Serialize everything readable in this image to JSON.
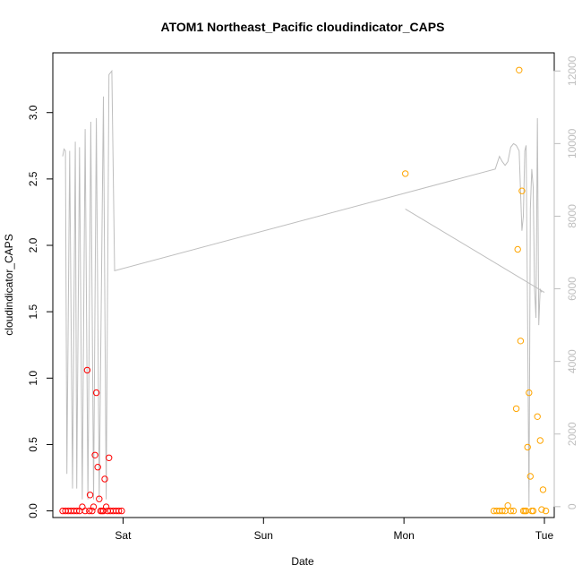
{
  "chart_data": {
    "type": "scatter",
    "title": "ATOM1 Northeast_Pacific cloudindicator_CAPS",
    "xlabel": "Date",
    "ylabel": "cloudindicator_CAPS",
    "x_ticks": [
      {
        "value": 1.0,
        "label": "Sat"
      },
      {
        "value": 2.0,
        "label": "Sun"
      },
      {
        "value": 3.0,
        "label": "Mon"
      },
      {
        "value": 4.0,
        "label": "Tue"
      }
    ],
    "xlim": [
      0.5,
      4.07
    ],
    "ylim": [
      -0.05,
      3.45
    ],
    "y_ticks": [
      0.0,
      0.5,
      1.0,
      1.5,
      2.0,
      2.5,
      3.0
    ],
    "y_tick_labels": [
      "0.0",
      "0.5",
      "1.0",
      "1.5",
      "2.0",
      "2.5",
      "3.0"
    ],
    "y2lim": [
      -300,
      12500
    ],
    "y2_ticks": [
      0,
      2000,
      4000,
      6000,
      8000,
      10000,
      12000
    ],
    "y2_tick_labels": [
      "0",
      "2000",
      "4000",
      "6000",
      "8000",
      "10000",
      "12000"
    ],
    "colors": {
      "series_red": "#ff0000",
      "series_orange": "#ffa500",
      "line_gray": "#bebebe"
    },
    "series": [
      {
        "color": "#ff0000",
        "marker": "open-circle",
        "points": [
          [
            0.57,
            0.0
          ],
          [
            0.59,
            0.0
          ],
          [
            0.61,
            0.0
          ],
          [
            0.63,
            0.0
          ],
          [
            0.65,
            0.0
          ],
          [
            0.67,
            0.0
          ],
          [
            0.69,
            0.0
          ],
          [
            0.71,
            0.03
          ],
          [
            0.73,
            0.0
          ],
          [
            0.745,
            1.06
          ],
          [
            0.76,
            0.0
          ],
          [
            0.765,
            0.12
          ],
          [
            0.78,
            0.0
          ],
          [
            0.79,
            0.03
          ],
          [
            0.8,
            0.42
          ],
          [
            0.81,
            0.89
          ],
          [
            0.82,
            0.33
          ],
          [
            0.83,
            0.09
          ],
          [
            0.84,
            0.0
          ],
          [
            0.85,
            0.0
          ],
          [
            0.86,
            0.0
          ],
          [
            0.87,
            0.24
          ],
          [
            0.88,
            0.03
          ],
          [
            0.89,
            0.0
          ],
          [
            0.9,
            0.4
          ],
          [
            0.91,
            0.0
          ],
          [
            0.93,
            0.0
          ],
          [
            0.95,
            0.0
          ],
          [
            0.97,
            0.0
          ],
          [
            0.99,
            0.0
          ]
        ]
      },
      {
        "color": "#ffa500",
        "marker": "open-circle",
        "points": [
          [
            3.01,
            2.54
          ],
          [
            3.64,
            0.0
          ],
          [
            3.66,
            0.0
          ],
          [
            3.68,
            0.0
          ],
          [
            3.7,
            0.0
          ],
          [
            3.72,
            0.0
          ],
          [
            3.74,
            0.04
          ],
          [
            3.76,
            0.0
          ],
          [
            3.78,
            0.0
          ],
          [
            3.8,
            0.77
          ],
          [
            3.81,
            1.97
          ],
          [
            3.82,
            3.32
          ],
          [
            3.83,
            1.28
          ],
          [
            3.84,
            2.41
          ],
          [
            3.85,
            0.0
          ],
          [
            3.86,
            0.0
          ],
          [
            3.87,
            0.0
          ],
          [
            3.88,
            0.48
          ],
          [
            3.89,
            0.89
          ],
          [
            3.9,
            0.26
          ],
          [
            3.91,
            0.0
          ],
          [
            3.92,
            0.0
          ],
          [
            3.95,
            0.71
          ],
          [
            3.97,
            0.53
          ],
          [
            3.98,
            0.01
          ],
          [
            3.99,
            0.16
          ],
          [
            4.01,
            0.0
          ]
        ]
      }
    ],
    "secondary_line": {
      "axis": "right",
      "color": "#bebebe",
      "points": [
        [
          0.57,
          9650
        ],
        [
          0.58,
          9850
        ],
        [
          0.59,
          9800
        ],
        [
          0.6,
          900
        ],
        [
          0.62,
          9800
        ],
        [
          0.64,
          500
        ],
        [
          0.66,
          10050
        ],
        [
          0.67,
          500
        ],
        [
          0.69,
          9900
        ],
        [
          0.71,
          200
        ],
        [
          0.73,
          10400
        ],
        [
          0.75,
          200
        ],
        [
          0.77,
          10600
        ],
        [
          0.79,
          200
        ],
        [
          0.81,
          10700
        ],
        [
          0.83,
          200
        ],
        [
          0.86,
          11300
        ],
        [
          0.88,
          200
        ],
        [
          0.9,
          11900
        ],
        [
          0.92,
          12000
        ],
        [
          0.94,
          6500
        ],
        [
          3.65,
          9300
        ],
        [
          3.68,
          9650
        ],
        [
          3.7,
          9500
        ],
        [
          3.72,
          9400
        ],
        [
          3.74,
          9500
        ],
        [
          3.76,
          9900
        ],
        [
          3.78,
          10000
        ],
        [
          3.8,
          9950
        ],
        [
          3.82,
          9800
        ],
        [
          3.84,
          7600
        ],
        [
          3.85,
          8000
        ],
        [
          3.86,
          9800
        ],
        [
          3.87,
          9950
        ],
        [
          3.88,
          5300
        ],
        [
          3.89,
          0
        ],
        [
          3.9,
          8200
        ],
        [
          3.91,
          9300
        ],
        [
          3.92,
          8800
        ],
        [
          3.93,
          6000
        ],
        [
          3.94,
          5200
        ],
        [
          3.95,
          10700
        ],
        [
          3.96,
          5000
        ],
        [
          3.97,
          6000
        ],
        [
          3.98,
          5900
        ]
      ]
    },
    "secondary_segment": {
      "axis": "right",
      "color": "#bebebe",
      "points": [
        [
          3.01,
          8200
        ],
        [
          4.0,
          5900
        ]
      ]
    }
  }
}
